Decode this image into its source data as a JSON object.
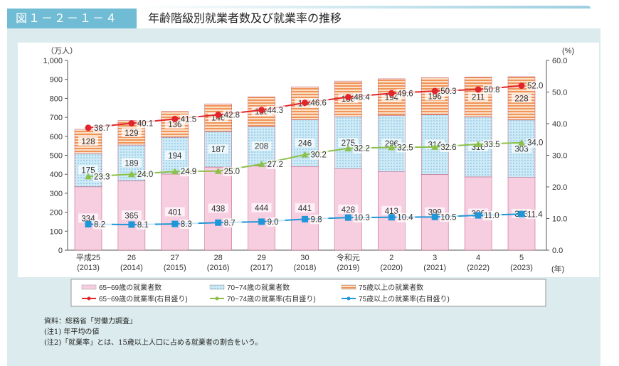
{
  "header": {
    "figure_label": "図１－２－１－４",
    "title": "年齢階級別就業者数及び就業率の推移"
  },
  "chart_data": {
    "type": "bar+line",
    "left_unit": "（万人）",
    "right_unit": "(%)",
    "x_unit": "(年)",
    "ylim_left": [
      0,
      1000
    ],
    "ylim_right": [
      0,
      60
    ],
    "left_ticks": [
      "0",
      "100",
      "200",
      "300",
      "400",
      "500",
      "600",
      "700",
      "800",
      "900",
      "1,000"
    ],
    "right_ticks": [
      "0.0",
      "10.0",
      "20.0",
      "30.0",
      "40.0",
      "50.0",
      "60.0"
    ],
    "categories": [
      [
        "平成25",
        "(2013)"
      ],
      [
        "26",
        "(2014)"
      ],
      [
        "27",
        "(2015)"
      ],
      [
        "28",
        "(2016)"
      ],
      [
        "29",
        "(2017)"
      ],
      [
        "30",
        "(2018)"
      ],
      [
        "令和元",
        "(2019)"
      ],
      [
        "2",
        "(2020)"
      ],
      [
        "3",
        "(2021)"
      ],
      [
        "4",
        "(2022)"
      ],
      [
        "5",
        "(2023)"
      ]
    ],
    "bar_series": [
      {
        "name": "65~69歳の就業者数",
        "color": "#f7cde0",
        "values": [
          334,
          365,
          401,
          438,
          444,
          441,
          428,
          413,
          399,
          386,
          383
        ]
      },
      {
        "name": "70~74歳の就業者数",
        "color": "#bfe3f3",
        "values": [
          175,
          189,
          194,
          187,
          208,
          246,
          275,
          296,
          314,
          316,
          303
        ]
      },
      {
        "name": "75歳以上の就業者数",
        "color": "#f3a66c",
        "values": [
          128,
          129,
          136,
          146,
          156,
          174,
          188,
          194,
          196,
          211,
          228
        ]
      }
    ],
    "line_series": [
      {
        "name": "65~69歳の就業率(右目盛り)",
        "color": "#e0262b",
        "marker": "circle",
        "values": [
          38.7,
          40.1,
          41.5,
          42.8,
          44.3,
          46.6,
          48.4,
          49.6,
          50.3,
          50.8,
          52.0
        ]
      },
      {
        "name": "70~74歳の就業率(右目盛り)",
        "color": "#8cc04a",
        "marker": "triangle",
        "values": [
          23.3,
          24.0,
          24.9,
          25.0,
          27.2,
          30.2,
          32.2,
          32.5,
          32.6,
          33.5,
          34.0
        ]
      },
      {
        "name": "75歳以上の就業率(右目盛り)",
        "color": "#1e96d8",
        "marker": "square",
        "values": [
          8.2,
          8.1,
          8.3,
          8.7,
          9.0,
          9.8,
          10.3,
          10.4,
          10.5,
          11.0,
          11.4
        ]
      }
    ],
    "grid": false,
    "legend_placement": "bottom"
  },
  "notes": [
    "資料：総務省「労働力調査」",
    "(注1) 年平均の値",
    "(注2)「就業率」とは、15歳以上人口に占める就業者の割合をいう。"
  ]
}
